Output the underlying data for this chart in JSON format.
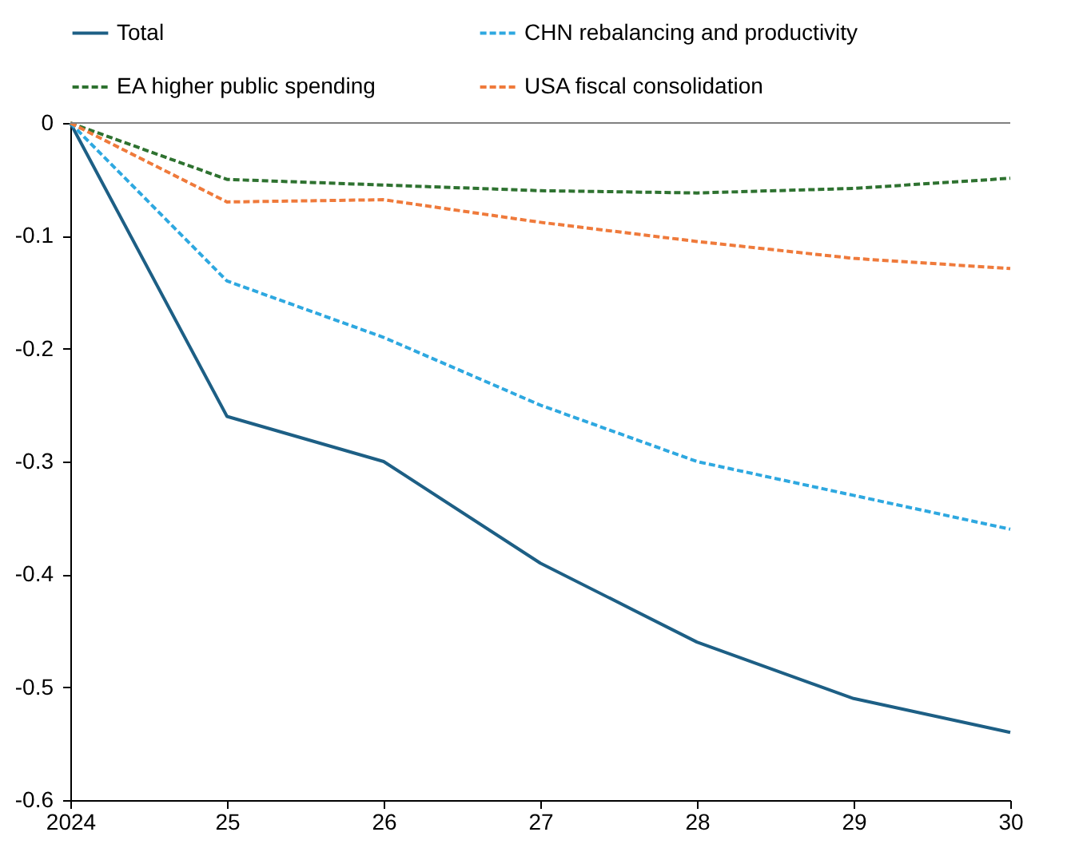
{
  "chart_data": {
    "type": "line",
    "categories": [
      "2024",
      "25",
      "26",
      "27",
      "28",
      "29",
      "30"
    ],
    "series": [
      {
        "name": "Total",
        "color": "#1d5f85",
        "line_style": "solid",
        "values": [
          0,
          -0.26,
          -0.3,
          -0.39,
          -0.46,
          -0.51,
          -0.54
        ]
      },
      {
        "name": "CHN rebalancing and productivity",
        "color": "#2ea8e0",
        "line_style": "dashed",
        "values": [
          0,
          -0.14,
          -0.19,
          -0.25,
          -0.3,
          -0.33,
          -0.36
        ]
      },
      {
        "name": "EA higher public spending",
        "color": "#2e7230",
        "line_style": "dashed",
        "values": [
          0,
          -0.05,
          -0.055,
          -0.06,
          -0.062,
          -0.058,
          -0.049
        ]
      },
      {
        "name": "USA fiscal consolidation",
        "color": "#ef7a3b",
        "line_style": "dashed",
        "values": [
          0,
          -0.07,
          -0.068,
          -0.088,
          -0.105,
          -0.12,
          -0.129
        ]
      }
    ],
    "ylim": [
      -0.6,
      0
    ],
    "yticks": [
      -0.6,
      -0.5,
      -0.4,
      -0.3,
      -0.2,
      -0.1,
      0
    ],
    "ref_lines": [
      {
        "axis": "y",
        "value": 0,
        "color": "#808080"
      }
    ],
    "grid": false,
    "legend": "top",
    "marker": "none"
  }
}
